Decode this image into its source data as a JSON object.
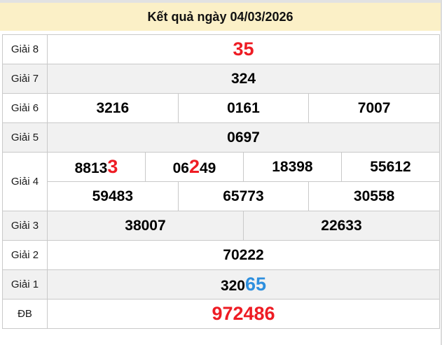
{
  "header": {
    "title": "Kết quả ngày 04/03/2026"
  },
  "colors": {
    "header_bg": "#fbf0c7",
    "row_alt_bg": "#f1f1f1",
    "border": "#c9c9c9",
    "red": "#ee1c24",
    "blue": "#2e8fde"
  },
  "results": {
    "rows": [
      {
        "label": "Giải 8",
        "shade": false,
        "lines": [
          [
            {
              "segments": [
                {
                  "t": "35",
                  "c": "red",
                  "big": true
                }
              ]
            }
          ]
        ]
      },
      {
        "label": "Giải 7",
        "shade": true,
        "lines": [
          [
            {
              "segments": [
                {
                  "t": "324"
                }
              ]
            }
          ]
        ]
      },
      {
        "label": "Giải 6",
        "shade": false,
        "lines": [
          [
            {
              "segments": [
                {
                  "t": "3216"
                }
              ]
            },
            {
              "segments": [
                {
                  "t": "0161"
                }
              ]
            },
            {
              "segments": [
                {
                  "t": "7007"
                }
              ]
            }
          ]
        ]
      },
      {
        "label": "Giải 5",
        "shade": true,
        "lines": [
          [
            {
              "segments": [
                {
                  "t": "0697"
                }
              ]
            }
          ]
        ]
      },
      {
        "label": "Giải 4",
        "shade": false,
        "lines": [
          [
            {
              "segments": [
                {
                  "t": "8813"
                },
                {
                  "t": "3",
                  "c": "red",
                  "big": true
                }
              ]
            },
            {
              "segments": [
                {
                  "t": "06"
                },
                {
                  "t": "2",
                  "c": "red",
                  "big": true
                },
                {
                  "t": "49"
                }
              ]
            },
            {
              "segments": [
                {
                  "t": "18398"
                }
              ]
            },
            {
              "segments": [
                {
                  "t": "55612"
                }
              ]
            }
          ],
          [
            {
              "segments": [
                {
                  "t": "59483"
                }
              ]
            },
            {
              "segments": [
                {
                  "t": "65773"
                }
              ]
            },
            {
              "segments": [
                {
                  "t": "30558"
                }
              ]
            }
          ]
        ]
      },
      {
        "label": "Giải 3",
        "shade": true,
        "lines": [
          [
            {
              "segments": [
                {
                  "t": "38007"
                }
              ]
            },
            {
              "segments": [
                {
                  "t": "22633"
                }
              ]
            }
          ]
        ]
      },
      {
        "label": "Giải 2",
        "shade": false,
        "lines": [
          [
            {
              "segments": [
                {
                  "t": "70222"
                }
              ]
            }
          ]
        ]
      },
      {
        "label": "Giải 1",
        "shade": true,
        "lines": [
          [
            {
              "segments": [
                {
                  "t": "320"
                },
                {
                  "t": "65",
                  "c": "blue",
                  "big": true
                }
              ]
            }
          ]
        ]
      },
      {
        "label": "ĐB",
        "shade": false,
        "lines": [
          [
            {
              "segments": [
                {
                  "t": "972486",
                  "c": "red",
                  "big": true
                }
              ]
            }
          ]
        ]
      }
    ]
  }
}
